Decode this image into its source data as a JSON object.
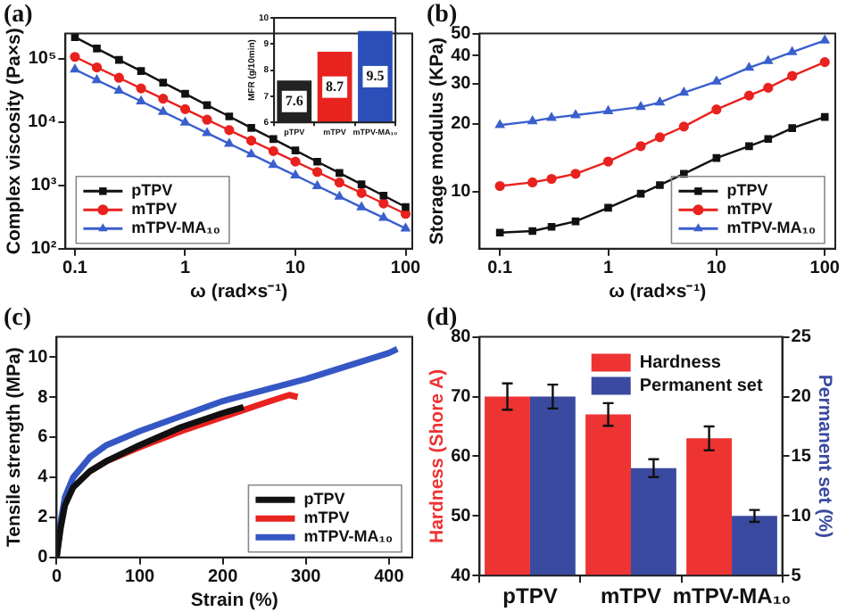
{
  "chart_data": [
    {
      "type": "line",
      "title": "(a)",
      "xlabel": "ω (rad×s⁻¹)",
      "ylabel": "Complex viscosity (Pa×s)",
      "log": "xy",
      "legend": "bottom left",
      "x": [
        0.1,
        0.158,
        0.251,
        0.398,
        0.631,
        1,
        1.58,
        2.51,
        3.98,
        6.31,
        10,
        15.8,
        25.1,
        39.8,
        63.1,
        100
      ],
      "xlim": [
        0.082,
        115
      ],
      "xticks": [
        0.1,
        1,
        10,
        100
      ],
      "ylim": [
        100,
        250000
      ],
      "yticks": [
        {
          "value": 100,
          "label": "10²"
        },
        {
          "value": 1000,
          "label": "10³"
        },
        {
          "value": 10000,
          "label": "10⁴"
        },
        {
          "value": 100000,
          "label": "10⁵"
        }
      ],
      "series": [
        {
          "name": "pTPV",
          "color": "#111111",
          "marker": "square",
          "values": [
            219000,
            145000,
            96000,
            64000,
            42000,
            28000,
            18500,
            12300,
            8100,
            5400,
            3570,
            2370,
            1570,
            1040,
            690,
            457
          ]
        },
        {
          "name": "mTPV",
          "color": "#e8221f",
          "marker": "circle",
          "values": [
            107000,
            73000,
            50000,
            34000,
            23400,
            16000,
            10900,
            7460,
            5090,
            3480,
            2380,
            1630,
            1110,
            760,
            519,
            355
          ]
        },
        {
          "name": "mTPV-MA₁₀",
          "color": "#3a5fcd",
          "marker": "triangle",
          "values": [
            67600,
            46000,
            31300,
            21300,
            14500,
            9860,
            6700,
            4560,
            3100,
            2110,
            1440,
            977,
            664,
            452,
            308,
            209
          ]
        }
      ]
    },
    {
      "type": "bar",
      "ylabel": "MFR (g/10min)",
      "categories": [
        "pTPV",
        "mTPV",
        "mTPV-MA₁₀"
      ],
      "values": [
        7.6,
        8.7,
        9.5
      ],
      "colors": [
        "#222222",
        "#e8221f",
        "#2a4fb8"
      ],
      "data_labels": true,
      "ylim": [
        6,
        10
      ],
      "yticks": [
        6,
        7,
        8,
        9,
        10
      ]
    },
    {
      "type": "line",
      "title": "(b)",
      "xlabel": "ω (rad×s⁻¹)",
      "ylabel": "Storage modulus (KPa)",
      "log": "xy",
      "legend": "bottom right",
      "x": [
        0.1,
        0.2,
        0.3,
        0.5,
        1,
        2,
        3,
        5,
        10,
        20,
        30,
        50,
        100
      ],
      "xlim": [
        0.065,
        125
      ],
      "xticks": [
        0.1,
        1,
        10,
        100
      ],
      "ylim": [
        5.6,
        50
      ],
      "yticks": [
        10,
        20,
        30,
        40,
        50
      ],
      "series": [
        {
          "name": "pTPV",
          "color": "#111111",
          "marker": "square",
          "values": [
            6.6,
            6.7,
            7.0,
            7.4,
            8.5,
            9.8,
            10.7,
            12.0,
            14.1,
            15.9,
            17.1,
            19.1,
            21.4
          ]
        },
        {
          "name": "mTPV",
          "color": "#e8221f",
          "marker": "circle",
          "values": [
            10.6,
            11.0,
            11.4,
            12.0,
            13.6,
            15.9,
            17.4,
            19.4,
            23.1,
            26.6,
            28.8,
            32.5,
            37.4
          ]
        },
        {
          "name": "mTPV-MA₁₀",
          "color": "#3a5fcd",
          "marker": "triangle",
          "values": [
            19.7,
            20.5,
            21.2,
            21.8,
            22.7,
            23.7,
            24.8,
            27.4,
            30.7,
            35.3,
            37.8,
            41.4,
            46.6
          ]
        }
      ]
    },
    {
      "type": "line",
      "title": "(c)",
      "xlabel": "Strain (%)",
      "ylabel": "Tensile strength (MPa)",
      "legend": "bottom right",
      "xlim": [
        0,
        428
      ],
      "xticks": [
        0,
        100,
        200,
        300,
        400
      ],
      "ylim": [
        0,
        11
      ],
      "yticks": [
        0,
        2,
        4,
        6,
        8,
        10
      ],
      "series": [
        {
          "name": "pTPV",
          "color": "#111111",
          "x": [
            0,
            5,
            10,
            20,
            40,
            60,
            100,
            150,
            200,
            225
          ],
          "values": [
            0,
            1.5,
            2.6,
            3.5,
            4.3,
            4.8,
            5.6,
            6.5,
            7.2,
            7.5
          ]
        },
        {
          "name": "mTPV",
          "color": "#e8221f",
          "x": [
            40,
            60,
            100,
            150,
            200,
            250,
            280,
            290
          ],
          "values": [
            4.3,
            4.8,
            5.5,
            6.3,
            7.0,
            7.7,
            8.1,
            8.0
          ]
        },
        {
          "name": "mTPV-MA₁₀",
          "color": "#3557c4",
          "x": [
            0,
            5,
            10,
            20,
            40,
            60,
            100,
            200,
            300,
            400,
            410
          ],
          "values": [
            0,
            1.8,
            3.0,
            4.0,
            5.0,
            5.6,
            6.3,
            7.8,
            8.9,
            10.2,
            10.4
          ]
        }
      ]
    },
    {
      "type": "bar",
      "title": "(d)",
      "ylabel": "Hardness (Shore A)",
      "y2label": "Permanent set (%)",
      "legend": "top right",
      "categories": [
        "pTPV",
        "mTPV",
        "mTPV-MA₁₀"
      ],
      "ylim": [
        40,
        80
      ],
      "yticks": [
        40,
        50,
        60,
        70,
        80
      ],
      "y2lim": [
        5,
        25
      ],
      "y2ticks": [
        5,
        10,
        15,
        20,
        25
      ],
      "series": [
        {
          "name": "Hardness",
          "color": "#ee3333",
          "values": [
            70,
            67,
            63
          ],
          "errors": [
            2.2,
            1.9,
            2
          ]
        },
        {
          "name": "Permanent set",
          "color": "#3a4aa0",
          "axis": "y2",
          "values": [
            20,
            14,
            10
          ],
          "errors": [
            1,
            0.75,
            0.5
          ]
        }
      ]
    }
  ]
}
